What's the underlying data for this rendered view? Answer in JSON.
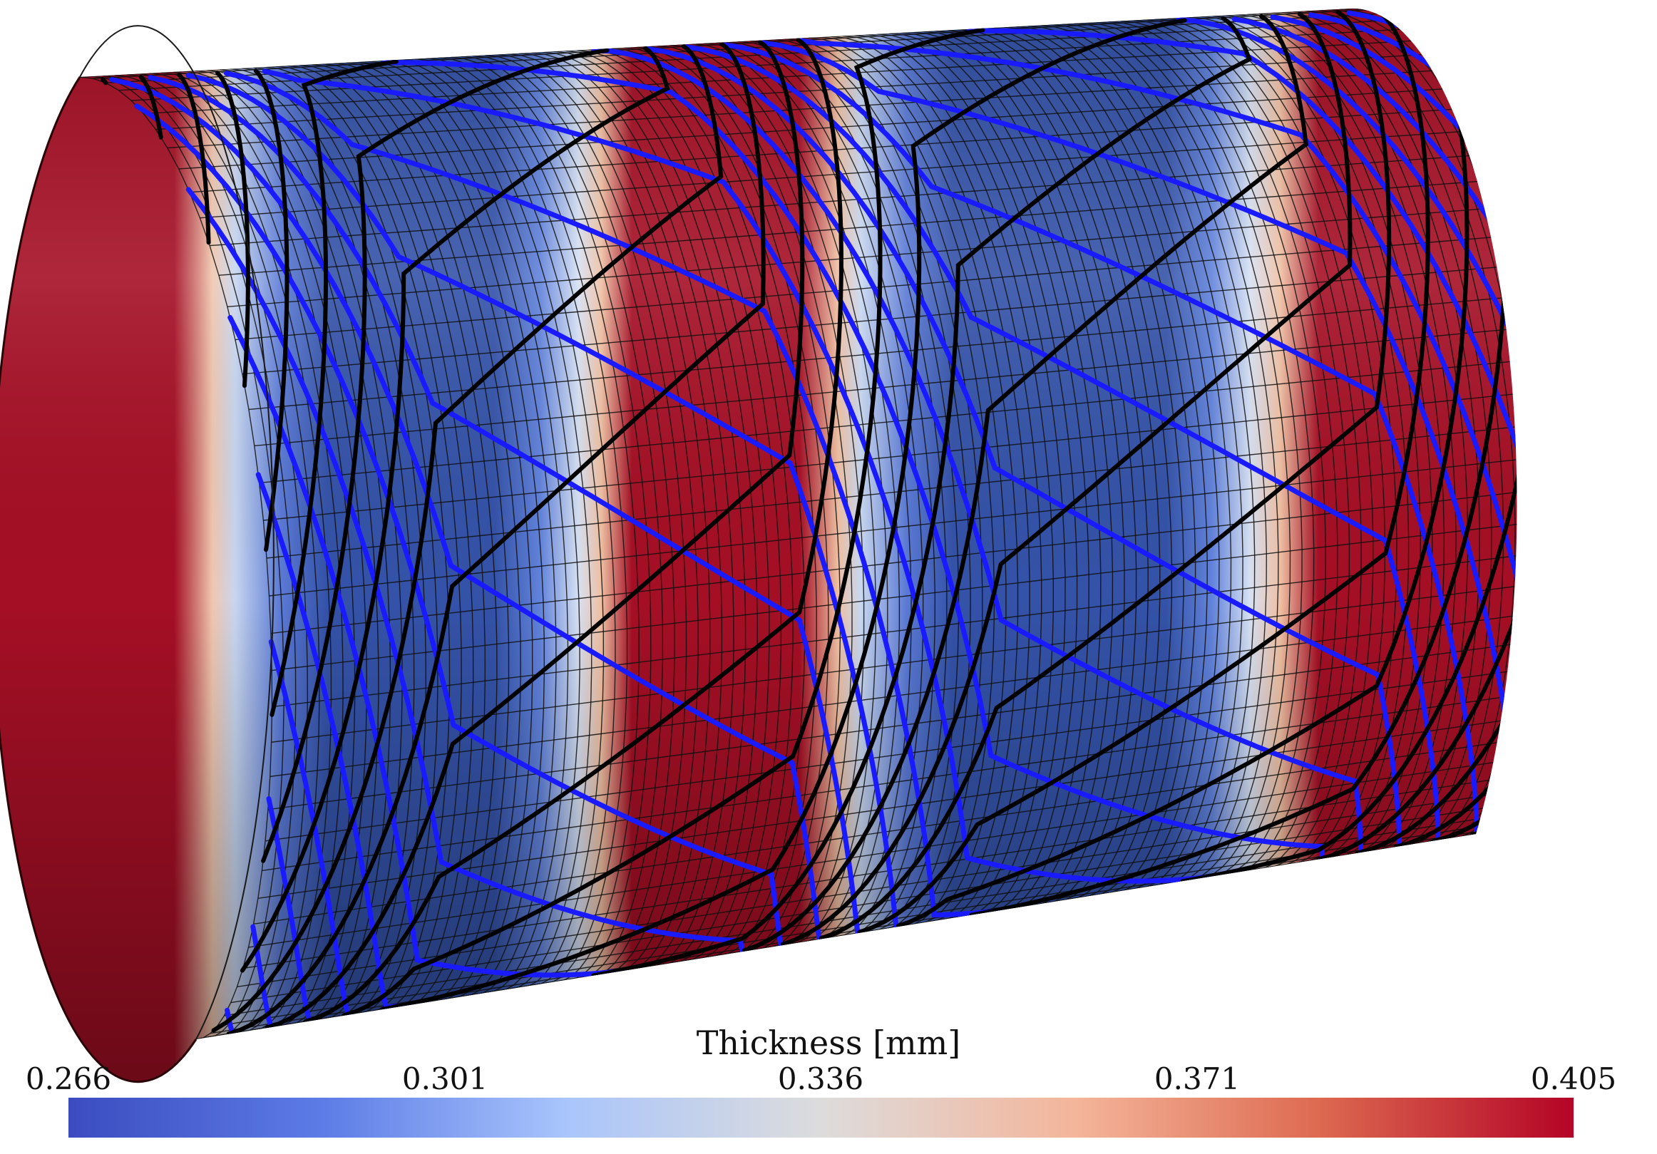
{
  "figure": {
    "colorbar": {
      "title": "Thickness [mm]",
      "ticks": [
        "0.266",
        "0.301",
        "0.336",
        "0.371",
        "0.405"
      ],
      "min": 0.266,
      "max": 0.405,
      "colormap": [
        "#3b4cc0",
        "#7b9ff9",
        "#c0d4f5",
        "#dddddd",
        "#f2cbb7",
        "#ee8468",
        "#b40426"
      ]
    },
    "surface_colors": {
      "thick": "#a50f25",
      "thin": "#3048a0",
      "mesh": "#101010",
      "curve_blue": "#1a1aff",
      "curve_black": "#000000"
    }
  }
}
